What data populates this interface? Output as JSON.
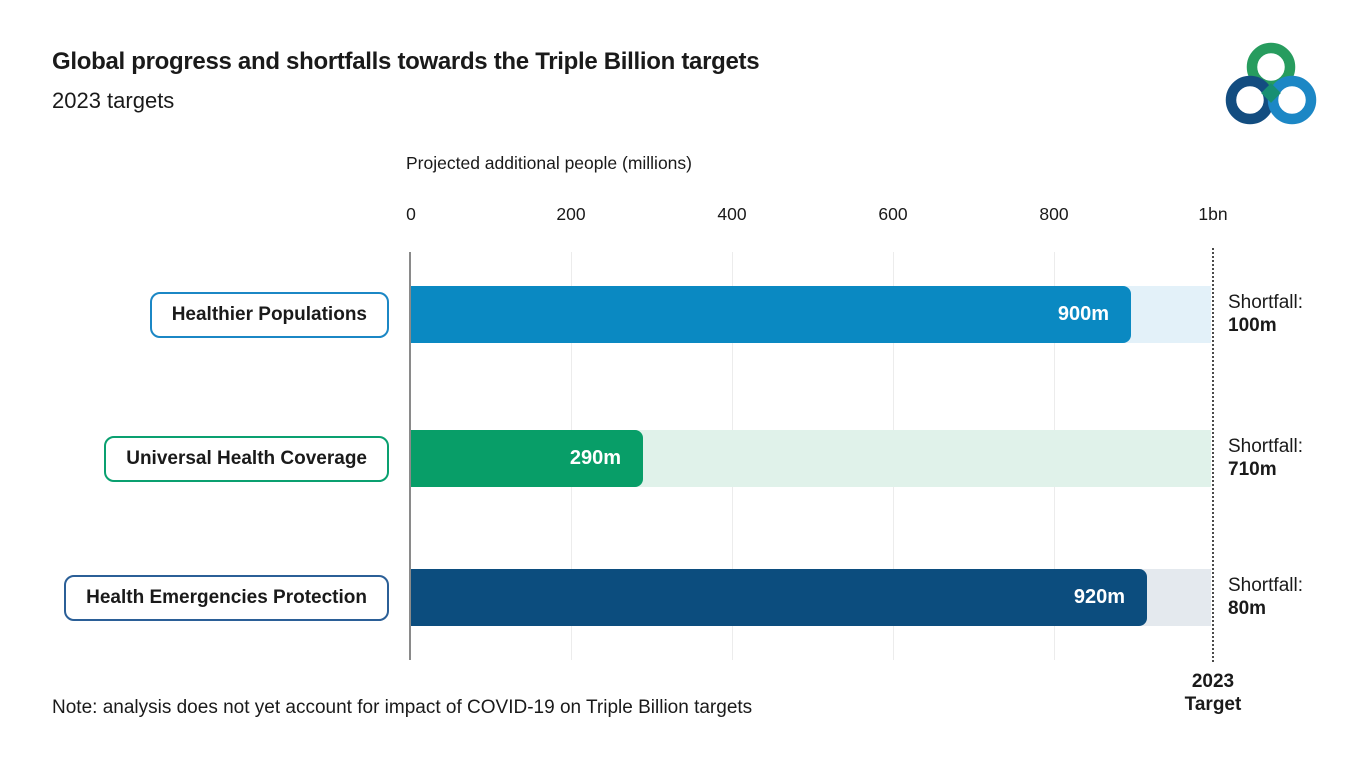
{
  "header": {
    "title": "Global progress and shortfalls towards the Triple Billion targets",
    "subtitle": "2023 targets"
  },
  "logo": {
    "name": "triple-billion-logo",
    "ring_green": "#279C5E",
    "ring_navy": "#134D80",
    "ring_blue": "#1C87C5",
    "center_diamond": "#178F72"
  },
  "chart_data": {
    "type": "bar",
    "orientation": "horizontal",
    "axis_title": "Projected additional people (millions)",
    "xlim": [
      0,
      1000
    ],
    "x_ticks": [
      "0",
      "200",
      "400",
      "600",
      "800",
      "1bn"
    ],
    "x_tick_values": [
      0,
      200,
      400,
      600,
      800,
      1000
    ],
    "grid": true,
    "categories": [
      "Healthier Populations",
      "Universal Health Coverage",
      "Health Emergencies Protection"
    ],
    "values": [
      900,
      290,
      920
    ],
    "value_labels": [
      "900m",
      "290m",
      "920m"
    ],
    "shortfall_title": "Shortfall:",
    "shortfalls": [
      100,
      710,
      80
    ],
    "shortfall_labels": [
      "100m",
      "710m",
      "80m"
    ],
    "bar_colors": [
      "#0A89C2",
      "#089E68",
      "#0C4D7E"
    ],
    "track_colors": [
      "#E3F1F9",
      "#E0F2EA",
      "#E4E9EE"
    ],
    "box_border_colors": [
      "#1B87C5",
      "#0AA070",
      "#2B5F97"
    ],
    "target_value": 1000,
    "target_label_line1": "2023",
    "target_label_line2": "Target",
    "legend": "none"
  },
  "note": "Note: analysis does not yet account for impact of COVID-19 on Triple Billion targets"
}
